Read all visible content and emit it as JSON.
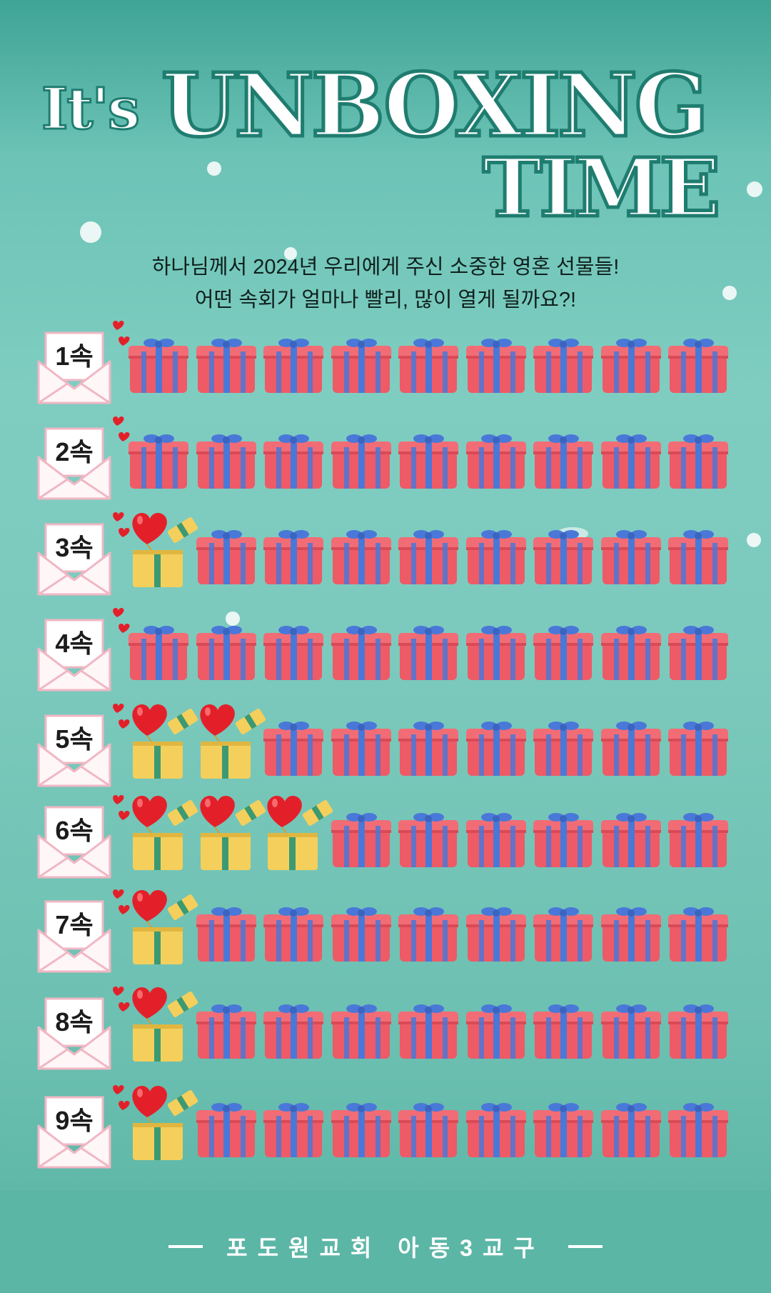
{
  "title": {
    "line1_prefix": "It's",
    "line1_main": "UNBOXING",
    "line2": "TIME"
  },
  "subtitle": [
    "하나님께서 2024년 우리에게 주신 소중한 영혼 선물들!",
    "어떤 속회가 얼마나 빨리, 많이 열게 될까요?!"
  ],
  "icons": {
    "closed": "wrapped-gift-icon",
    "opened": "opened-gift-heart-icon",
    "envelope": "envelope-icon",
    "hearts": "small-hearts-icon"
  },
  "colors": {
    "gift_red": "#ee5a66",
    "ribbon_blue": "#4a78d8",
    "open_box_yellow": "#f5cf5c",
    "heart_red": "#e3202a",
    "background": "#7ccabd"
  },
  "groups": [
    {
      "label": "1속",
      "opened": 0,
      "total": 9
    },
    {
      "label": "2속",
      "opened": 0,
      "total": 9
    },
    {
      "label": "3속",
      "opened": 1,
      "total": 9
    },
    {
      "label": "4속",
      "opened": 0,
      "total": 9
    },
    {
      "label": "5속",
      "opened": 2,
      "total": 9
    },
    {
      "label": "6속",
      "opened": 3,
      "total": 9
    },
    {
      "label": "7속",
      "opened": 1,
      "total": 9
    },
    {
      "label": "8속",
      "opened": 1,
      "total": 9
    },
    {
      "label": "9속",
      "opened": 1,
      "total": 9
    }
  ],
  "footer": {
    "text": "포도원교회 아동3교구"
  }
}
